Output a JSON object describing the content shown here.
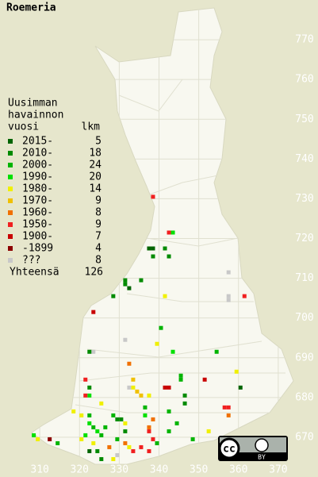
{
  "title": "Roemeria",
  "legend": {
    "title": [
      "Uusimman",
      "havainnon",
      "vuosi"
    ],
    "count_header": "lkm",
    "items": [
      {
        "label": "2015-",
        "count": 5,
        "color": "#006400"
      },
      {
        "label": "2010-",
        "count": 18,
        "color": "#008a00"
      },
      {
        "label": "2000-",
        "count": 24,
        "color": "#00b400"
      },
      {
        "label": "1990-",
        "count": 20,
        "color": "#00e000"
      },
      {
        "label": "1980-",
        "count": 14,
        "color": "#f0f000"
      },
      {
        "label": "1970-",
        "count": 9,
        "color": "#f0c000"
      },
      {
        "label": "1960-",
        "count": 8,
        "color": "#f07000"
      },
      {
        "label": "1950-",
        "count": 9,
        "color": "#f02020"
      },
      {
        "label": "1900-",
        "count": 7,
        "color": "#c80000"
      },
      {
        "label": "-1899",
        "count": 4,
        "color": "#8c0000"
      },
      {
        "label": "???",
        "count": 8,
        "color": "#c8c8c8"
      }
    ],
    "total_label": "Yhteensä",
    "total": 126
  },
  "map": {
    "xlim": [
      300,
      380
    ],
    "ylim": [
      660,
      780
    ],
    "xticks": [
      310,
      320,
      330,
      340,
      350,
      360,
      370
    ],
    "yticks": [
      670,
      680,
      690,
      700,
      710,
      720,
      730,
      740,
      750,
      760,
      770
    ],
    "points": [
      [
        338,
        730,
        7
      ],
      [
        342,
        721,
        7
      ],
      [
        343,
        721,
        3
      ],
      [
        337,
        717,
        0
      ],
      [
        338,
        717,
        0
      ],
      [
        341,
        717,
        1
      ],
      [
        338,
        715,
        1
      ],
      [
        342,
        715,
        1
      ],
      [
        331,
        709,
        1
      ],
      [
        331,
        708,
        1
      ],
      [
        332,
        707,
        0
      ],
      [
        335,
        709,
        1
      ],
      [
        328,
        705,
        1
      ],
      [
        341,
        705,
        4
      ],
      [
        357,
        711,
        10
      ],
      [
        361,
        705,
        7
      ],
      [
        357,
        704,
        10
      ],
      [
        357,
        705,
        10
      ],
      [
        323,
        701,
        8
      ],
      [
        340,
        697,
        2
      ],
      [
        331,
        694,
        10
      ],
      [
        339,
        693,
        4
      ],
      [
        323,
        691,
        10
      ],
      [
        322,
        691,
        1
      ],
      [
        343,
        691,
        3
      ],
      [
        354,
        691,
        2
      ],
      [
        359,
        686,
        4
      ],
      [
        332,
        688,
        6
      ],
      [
        345,
        685,
        2
      ],
      [
        345,
        684,
        2
      ],
      [
        351,
        684,
        8
      ],
      [
        321,
        684,
        7
      ],
      [
        341,
        682,
        8
      ],
      [
        342,
        682,
        8
      ],
      [
        360,
        682,
        0
      ],
      [
        333,
        684,
        5
      ],
      [
        333,
        682,
        4
      ],
      [
        334,
        681,
        5
      ],
      [
        335,
        680,
        5
      ],
      [
        332,
        682,
        10
      ],
      [
        337,
        680,
        4
      ],
      [
        322,
        682,
        1
      ],
      [
        322,
        680,
        3
      ],
      [
        321,
        680,
        7
      ],
      [
        325,
        678,
        4
      ],
      [
        336,
        677,
        2
      ],
      [
        336,
        675,
        3
      ],
      [
        346,
        680,
        1
      ],
      [
        346,
        678,
        1
      ],
      [
        357,
        677,
        7
      ],
      [
        356,
        677,
        7
      ],
      [
        357,
        675,
        6
      ],
      [
        318,
        676,
        4
      ],
      [
        320,
        675,
        4
      ],
      [
        322,
        675,
        2
      ],
      [
        322,
        673,
        3
      ],
      [
        323,
        672,
        2
      ],
      [
        324,
        671,
        3
      ],
      [
        325,
        670,
        2
      ],
      [
        326,
        672,
        2
      ],
      [
        328,
        675,
        2
      ],
      [
        329,
        674,
        1
      ],
      [
        331,
        673,
        4
      ],
      [
        308,
        670,
        3
      ],
      [
        309,
        669,
        4
      ],
      [
        312,
        669,
        9
      ],
      [
        314,
        668,
        2
      ],
      [
        320,
        669,
        4
      ],
      [
        321,
        670,
        3
      ],
      [
        323,
        668,
        4
      ],
      [
        324,
        666,
        1
      ],
      [
        327,
        667,
        6
      ],
      [
        329,
        669,
        2
      ],
      [
        331,
        668,
        6
      ],
      [
        332,
        667,
        4
      ],
      [
        333,
        666,
        7
      ],
      [
        335,
        667,
        7
      ],
      [
        337,
        666,
        7
      ],
      [
        338,
        669,
        7
      ],
      [
        337,
        671,
        7
      ],
      [
        339,
        668,
        2
      ],
      [
        342,
        671,
        2
      ],
      [
        344,
        673,
        2
      ],
      [
        348,
        669,
        2
      ],
      [
        352,
        671,
        4
      ],
      [
        337,
        672,
        6
      ],
      [
        331,
        671,
        1
      ],
      [
        325,
        664,
        1
      ],
      [
        328,
        664,
        4
      ],
      [
        329,
        665,
        10
      ],
      [
        322,
        666,
        0
      ],
      [
        330,
        674,
        1
      ],
      [
        342,
        676,
        2
      ],
      [
        338,
        674,
        6
      ]
    ]
  },
  "license": {
    "cc": "cc",
    "by": "BY"
  }
}
